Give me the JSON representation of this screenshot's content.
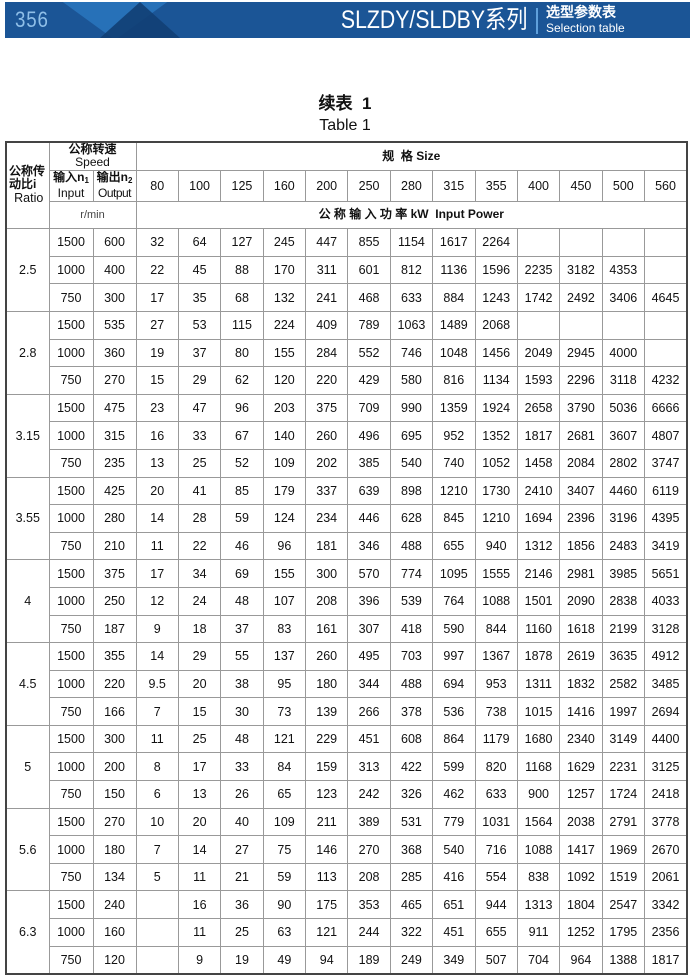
{
  "header": {
    "page_number": "356",
    "series_title": "SLZDY/SLDBY系列",
    "section_cn": "选型参数表",
    "section_en": "Selection table",
    "brand_color": "#1b5596"
  },
  "title": {
    "cn": "续表  1",
    "en": "Table 1"
  },
  "table": {
    "ratio_header": [
      "公称传",
      "动比i",
      "Ratio"
    ],
    "speed_header_cn": "公称转速",
    "speed_header_en": "Speed",
    "input_header": [
      "输入n",
      "1",
      "Input"
    ],
    "output_header": [
      "输出n",
      "2",
      "Output"
    ],
    "size_header": "规  格 Size",
    "speed_unit": "r/min",
    "power_header": "公 称 输 入 功 率 kW  Input Power",
    "sizes": [
      "80",
      "100",
      "125",
      "160",
      "200",
      "250",
      "280",
      "315",
      "355",
      "400",
      "450",
      "500",
      "560"
    ],
    "groups": [
      {
        "ratio": "2.5",
        "rows": [
          {
            "input": "1500",
            "output": "600",
            "values": [
              "32",
              "64",
              "127",
              "245",
              "447",
              "855",
              "1154",
              "1617",
              "2264",
              "",
              "",
              "",
              ""
            ]
          },
          {
            "input": "1000",
            "output": "400",
            "values": [
              "22",
              "45",
              "88",
              "170",
              "311",
              "601",
              "812",
              "1136",
              "1596",
              "2235",
              "3182",
              "4353",
              ""
            ]
          },
          {
            "input": "750",
            "output": "300",
            "values": [
              "17",
              "35",
              "68",
              "132",
              "241",
              "468",
              "633",
              "884",
              "1243",
              "1742",
              "2492",
              "3406",
              "4645"
            ]
          }
        ]
      },
      {
        "ratio": "2.8",
        "rows": [
          {
            "input": "1500",
            "output": "535",
            "values": [
              "27",
              "53",
              "115",
              "224",
              "409",
              "789",
              "1063",
              "1489",
              "2068",
              "",
              "",
              "",
              ""
            ]
          },
          {
            "input": "1000",
            "output": "360",
            "values": [
              "19",
              "37",
              "80",
              "155",
              "284",
              "552",
              "746",
              "1048",
              "1456",
              "2049",
              "2945",
              "4000",
              ""
            ]
          },
          {
            "input": "750",
            "output": "270",
            "values": [
              "15",
              "29",
              "62",
              "120",
              "220",
              "429",
              "580",
              "816",
              "1134",
              "1593",
              "2296",
              "3118",
              "4232"
            ]
          }
        ]
      },
      {
        "ratio": "3.15",
        "rows": [
          {
            "input": "1500",
            "output": "475",
            "values": [
              "23",
              "47",
              "96",
              "203",
              "375",
              "709",
              "990",
              "1359",
              "1924",
              "2658",
              "3790",
              "5036",
              "6666"
            ]
          },
          {
            "input": "1000",
            "output": "315",
            "values": [
              "16",
              "33",
              "67",
              "140",
              "260",
              "496",
              "695",
              "952",
              "1352",
              "1817",
              "2681",
              "3607",
              "4807"
            ]
          },
          {
            "input": "750",
            "output": "235",
            "values": [
              "13",
              "25",
              "52",
              "109",
              "202",
              "385",
              "540",
              "740",
              "1052",
              "1458",
              "2084",
              "2802",
              "3747"
            ]
          }
        ]
      },
      {
        "ratio": "3.55",
        "rows": [
          {
            "input": "1500",
            "output": "425",
            "values": [
              "20",
              "41",
              "85",
              "179",
              "337",
              "639",
              "898",
              "1210",
              "1730",
              "2410",
              "3407",
              "4460",
              "6119"
            ]
          },
          {
            "input": "1000",
            "output": "280",
            "values": [
              "14",
              "28",
              "59",
              "124",
              "234",
              "446",
              "628",
              "845",
              "1210",
              "1694",
              "2396",
              "3196",
              "4395"
            ]
          },
          {
            "input": "750",
            "output": "210",
            "values": [
              "11",
              "22",
              "46",
              "96",
              "181",
              "346",
              "488",
              "655",
              "940",
              "1312",
              "1856",
              "2483",
              "3419"
            ]
          }
        ]
      },
      {
        "ratio": "4",
        "rows": [
          {
            "input": "1500",
            "output": "375",
            "values": [
              "17",
              "34",
              "69",
              "155",
              "300",
              "570",
              "774",
              "1095",
              "1555",
              "2146",
              "2981",
              "3985",
              "5651"
            ]
          },
          {
            "input": "1000",
            "output": "250",
            "values": [
              "12",
              "24",
              "48",
              "107",
              "208",
              "396",
              "539",
              "764",
              "1088",
              "1501",
              "2090",
              "2838",
              "4033"
            ]
          },
          {
            "input": "750",
            "output": "187",
            "values": [
              "9",
              "18",
              "37",
              "83",
              "161",
              "307",
              "418",
              "590",
              "844",
              "1160",
              "1618",
              "2199",
              "3128"
            ]
          }
        ]
      },
      {
        "ratio": "4.5",
        "rows": [
          {
            "input": "1500",
            "output": "355",
            "values": [
              "14",
              "29",
              "55",
              "137",
              "260",
              "495",
              "703",
              "997",
              "1367",
              "1878",
              "2619",
              "3635",
              "4912"
            ]
          },
          {
            "input": "1000",
            "output": "220",
            "values": [
              "9.5",
              "20",
              "38",
              "95",
              "180",
              "344",
              "488",
              "694",
              "953",
              "1311",
              "1832",
              "2582",
              "3485"
            ]
          },
          {
            "input": "750",
            "output": "166",
            "values": [
              "7",
              "15",
              "30",
              "73",
              "139",
              "266",
              "378",
              "536",
              "738",
              "1015",
              "1416",
              "1997",
              "2694"
            ]
          }
        ]
      },
      {
        "ratio": "5",
        "rows": [
          {
            "input": "1500",
            "output": "300",
            "values": [
              "11",
              "25",
              "48",
              "121",
              "229",
              "451",
              "608",
              "864",
              "1179",
              "1680",
              "2340",
              "3149",
              "4400"
            ]
          },
          {
            "input": "1000",
            "output": "200",
            "values": [
              "8",
              "17",
              "33",
              "84",
              "159",
              "313",
              "422",
              "599",
              "820",
              "1168",
              "1629",
              "2231",
              "3125"
            ]
          },
          {
            "input": "750",
            "output": "150",
            "values": [
              "6",
              "13",
              "26",
              "65",
              "123",
              "242",
              "326",
              "462",
              "633",
              "900",
              "1257",
              "1724",
              "2418"
            ]
          }
        ]
      },
      {
        "ratio": "5.6",
        "rows": [
          {
            "input": "1500",
            "output": "270",
            "values": [
              "10",
              "20",
              "40",
              "109",
              "211",
              "389",
              "531",
              "779",
              "1031",
              "1564",
              "2038",
              "2791",
              "3778"
            ]
          },
          {
            "input": "1000",
            "output": "180",
            "values": [
              "7",
              "14",
              "27",
              "75",
              "146",
              "270",
              "368",
              "540",
              "716",
              "1088",
              "1417",
              "1969",
              "2670"
            ]
          },
          {
            "input": "750",
            "output": "134",
            "values": [
              "5",
              "11",
              "21",
              "59",
              "113",
              "208",
              "285",
              "416",
              "554",
              "838",
              "1092",
              "1519",
              "2061"
            ]
          }
        ]
      },
      {
        "ratio": "6.3",
        "rows": [
          {
            "input": "1500",
            "output": "240",
            "values": [
              "",
              "16",
              "36",
              "90",
              "175",
              "353",
              "465",
              "651",
              "944",
              "1313",
              "1804",
              "2547",
              "3342"
            ]
          },
          {
            "input": "1000",
            "output": "160",
            "values": [
              "",
              "11",
              "25",
              "63",
              "121",
              "244",
              "322",
              "451",
              "655",
              "911",
              "1252",
              "1795",
              "2356"
            ]
          },
          {
            "input": "750",
            "output": "120",
            "values": [
              "",
              "9",
              "19",
              "49",
              "94",
              "189",
              "249",
              "349",
              "507",
              "704",
              "964",
              "1388",
              "1817"
            ]
          }
        ]
      }
    ]
  }
}
